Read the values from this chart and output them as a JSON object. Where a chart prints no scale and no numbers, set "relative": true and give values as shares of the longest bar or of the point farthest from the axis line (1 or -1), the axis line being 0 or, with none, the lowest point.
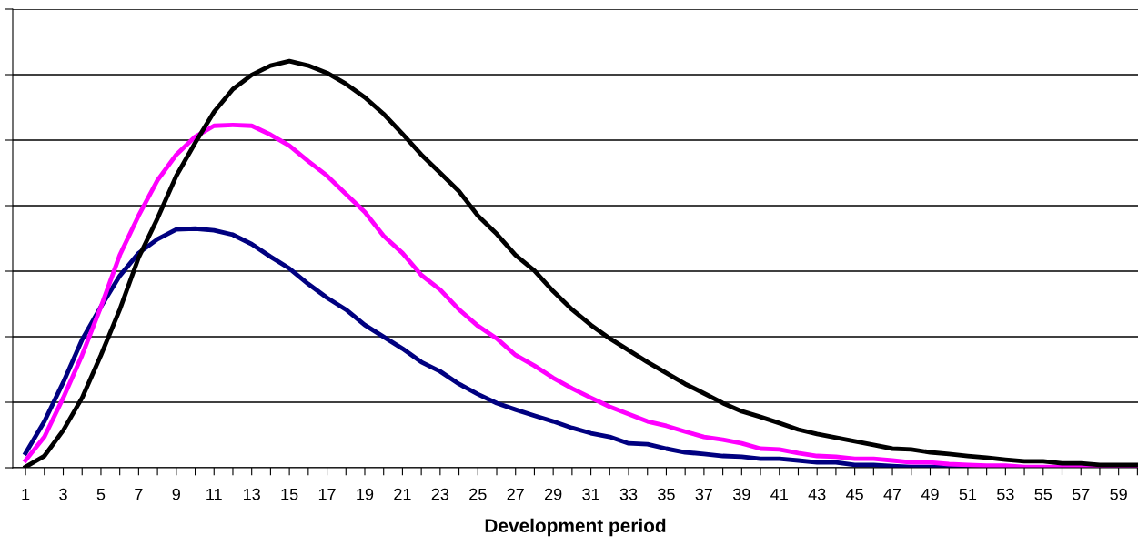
{
  "chart_data": {
    "type": "line",
    "xlabel": "Development period",
    "relative": true,
    "grid": "y",
    "marker": "none",
    "line_style": "solid",
    "categories": [
      "1",
      null,
      "3",
      null,
      "5",
      null,
      "7",
      null,
      "9",
      null,
      "11",
      null,
      "13",
      null,
      "15",
      null,
      "17",
      null,
      "19",
      null,
      "21",
      null,
      "23",
      null,
      "25",
      null,
      "27",
      null,
      "29",
      null,
      "31",
      null,
      "33",
      null,
      "35",
      null,
      "37",
      null,
      "39",
      null,
      "41",
      null,
      "43",
      null,
      "45",
      null,
      "47",
      null,
      "49",
      null,
      "51",
      null,
      "53",
      null,
      "55",
      null,
      "57",
      null,
      "59",
      null
    ],
    "series": [
      {
        "color": "#000080",
        "values": [
          0.036,
          0.114,
          0.21,
          0.315,
          0.396,
          0.472,
          0.528,
          0.562,
          0.586,
          0.588,
          0.584,
          0.573,
          0.55,
          0.519,
          0.49,
          0.452,
          0.418,
          0.389,
          0.351,
          0.322,
          0.293,
          0.26,
          0.237,
          0.206,
          0.181,
          0.159,
          0.143,
          0.128,
          0.114,
          0.098,
          0.085,
          0.076,
          0.06,
          0.058,
          0.047,
          0.038,
          0.034,
          0.029,
          0.027,
          0.022,
          0.022,
          0.018,
          0.013,
          0.013,
          0.007,
          0.007,
          0.004,
          0.002,
          0.002,
          0.002,
          0,
          null,
          null,
          null,
          null,
          null,
          null,
          null,
          null,
          null
        ]
      },
      {
        "color": "#ff00ff",
        "values": [
          0.018,
          0.076,
          0.172,
          0.277,
          0.396,
          0.523,
          0.62,
          0.707,
          0.77,
          0.814,
          0.841,
          0.843,
          0.841,
          0.819,
          0.792,
          0.754,
          0.718,
          0.673,
          0.629,
          0.57,
          0.528,
          0.474,
          0.438,
          0.389,
          0.349,
          0.318,
          0.277,
          0.251,
          0.221,
          0.195,
          0.172,
          0.15,
          0.132,
          0.114,
          0.103,
          0.089,
          0.076,
          0.069,
          0.06,
          0.047,
          0.045,
          0.036,
          0.029,
          0.027,
          0.022,
          0.022,
          0.018,
          0.013,
          0.013,
          0.009,
          0.007,
          0.005,
          0.005,
          0.002,
          0.002,
          0.002,
          0.002,
          0,
          0,
          0
        ]
      },
      {
        "color": "#000000",
        "values": [
          0.002,
          0.029,
          0.092,
          0.172,
          0.277,
          0.389,
          0.517,
          0.613,
          0.718,
          0.799,
          0.875,
          0.931,
          0.966,
          0.989,
          1,
          0.989,
          0.971,
          0.944,
          0.911,
          0.87,
          0.821,
          0.77,
          0.725,
          0.68,
          0.62,
          0.575,
          0.523,
          0.485,
          0.434,
          0.389,
          0.351,
          0.318,
          0.289,
          0.26,
          0.233,
          0.206,
          0.183,
          0.159,
          0.139,
          0.125,
          0.11,
          0.094,
          0.083,
          0.074,
          0.065,
          0.056,
          0.047,
          0.045,
          0.038,
          0.034,
          0.029,
          0.025,
          0.02,
          0.016,
          0.016,
          0.011,
          0.011,
          0.007,
          0.007,
          0.007
        ]
      }
    ]
  }
}
